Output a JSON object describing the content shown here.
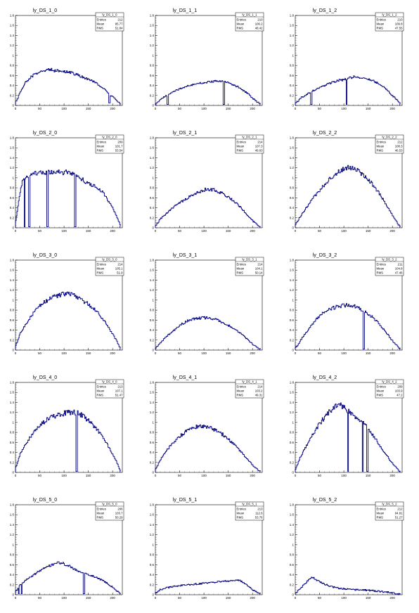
{
  "chart_data": [
    {
      "type": "line",
      "title": "ly_DS_1_0",
      "xlim": [
        0,
        220
      ],
      "ylim": [
        0,
        1.8
      ],
      "stats": {
        "name": "ly_DS_1_0",
        "entries_label": "Entries",
        "entries": "212",
        "mean_label": "Mean",
        "mean": "95.77",
        "rms_label": "RMS",
        "rms": "51.84"
      },
      "x": [
        0,
        5,
        10,
        20,
        30,
        40,
        50,
        60,
        70,
        80,
        90,
        100,
        110,
        120,
        130,
        140,
        150,
        160,
        170,
        180,
        185,
        190,
        200,
        210,
        215
      ],
      "y": [
        0.06,
        0.15,
        0.28,
        0.45,
        0.55,
        0.63,
        0.68,
        0.7,
        0.72,
        0.7,
        0.69,
        0.68,
        0.66,
        0.64,
        0.6,
        0.56,
        0.52,
        0.48,
        0.42,
        0.36,
        0.3,
        0.25,
        0.17,
        0.09,
        0.04
      ],
      "spikes": [
        {
          "x": 193,
          "y": 0.05
        }
      ]
    },
    {
      "type": "line",
      "title": "ly_DS_1_1",
      "xlim": [
        0,
        220
      ],
      "ylim": [
        0,
        1.8
      ],
      "stats": {
        "name": "ly_DS_1_1",
        "entries_label": "Entries",
        "entries": "210",
        "mean_label": "Mean",
        "mean": "106.2",
        "rms_label": "RMS",
        "rms": "48.42"
      },
      "x": [
        0,
        5,
        10,
        20,
        30,
        40,
        50,
        60,
        70,
        80,
        90,
        100,
        110,
        120,
        130,
        140,
        150,
        160,
        170,
        180,
        190,
        200,
        210,
        215
      ],
      "y": [
        0.03,
        0.07,
        0.12,
        0.18,
        0.24,
        0.29,
        0.33,
        0.37,
        0.4,
        0.42,
        0.44,
        0.46,
        0.47,
        0.48,
        0.49,
        0.48,
        0.45,
        0.42,
        0.37,
        0.31,
        0.24,
        0.15,
        0.07,
        0.03
      ],
      "spikes": [
        {
          "x": 25,
          "y": 0.02
        },
        {
          "x": 140,
          "y": 0.02
        }
      ]
    },
    {
      "type": "line",
      "title": "ly_DS_1_2",
      "xlim": [
        0,
        220
      ],
      "ylim": [
        0,
        1.8
      ],
      "stats": {
        "name": "ly_DS_1_2",
        "entries_label": "Entries",
        "entries": "210",
        "mean_label": "Mean",
        "mean": "109.8",
        "rms_label": "RMS",
        "rms": "47.55"
      },
      "x": [
        0,
        5,
        10,
        20,
        30,
        40,
        50,
        60,
        70,
        80,
        90,
        100,
        110,
        120,
        130,
        140,
        150,
        160,
        170,
        180,
        190,
        200,
        210,
        215
      ],
      "y": [
        0.04,
        0.08,
        0.14,
        0.2,
        0.26,
        0.31,
        0.36,
        0.4,
        0.44,
        0.47,
        0.5,
        0.52,
        0.55,
        0.57,
        0.56,
        0.54,
        0.52,
        0.49,
        0.45,
        0.39,
        0.3,
        0.2,
        0.1,
        0.04
      ],
      "spikes": [
        {
          "x": 32,
          "y": 0.02
        },
        {
          "x": 105,
          "y": 0.02
        }
      ]
    },
    {
      "type": "line",
      "title": "ly_DS_2_0",
      "xlim": [
        0,
        220
      ],
      "ylim": [
        0,
        1.8
      ],
      "stats": {
        "name": "ly_DS_2_0",
        "entries_label": "Entries",
        "entries": "209",
        "mean_label": "Mean",
        "mean": "101.7",
        "rms_label": "RMS",
        "rms": "53.54"
      },
      "x": [
        0,
        5,
        10,
        15,
        20,
        30,
        40,
        50,
        60,
        70,
        80,
        90,
        100,
        110,
        120,
        130,
        140,
        150,
        160,
        170,
        180,
        190,
        200,
        210,
        215
      ],
      "y": [
        0.1,
        0.4,
        0.75,
        0.95,
        1.0,
        1.05,
        1.08,
        1.1,
        1.12,
        1.1,
        1.12,
        1.13,
        1.1,
        1.12,
        1.08,
        1.0,
        0.95,
        0.88,
        0.85,
        0.8,
        0.72,
        0.55,
        0.4,
        0.2,
        0.08
      ],
      "spikes": [
        {
          "x": 18,
          "y": 0.02
        },
        {
          "x": 28,
          "y": 0.02
        },
        {
          "x": 65,
          "y": 0.02
        },
        {
          "x": 122,
          "y": 0.02
        }
      ]
    },
    {
      "type": "line",
      "title": "ly_DS_2_1",
      "xlim": [
        0,
        220
      ],
      "ylim": [
        0,
        1.8
      ],
      "stats": {
        "name": "ly_DS_2_1",
        "entries_label": "Entries",
        "entries": "214",
        "mean_label": "Mean",
        "mean": "107.3",
        "rms_label": "RMS",
        "rms": "49.63"
      },
      "x": [
        0,
        5,
        10,
        20,
        30,
        40,
        50,
        60,
        70,
        80,
        90,
        100,
        110,
        120,
        130,
        140,
        150,
        160,
        170,
        180,
        190,
        200,
        210,
        215
      ],
      "y": [
        0.04,
        0.1,
        0.17,
        0.26,
        0.35,
        0.43,
        0.5,
        0.56,
        0.62,
        0.67,
        0.72,
        0.76,
        0.77,
        0.76,
        0.72,
        0.68,
        0.62,
        0.55,
        0.46,
        0.36,
        0.25,
        0.14,
        0.06,
        0.02
      ],
      "spikes": []
    },
    {
      "type": "line",
      "title": "ly_DS_2_2",
      "xlim": [
        0,
        220
      ],
      "ylim": [
        0,
        1.8
      ],
      "stats": {
        "name": "ly_DS_2_2",
        "entries_label": "Entries",
        "entries": "212",
        "mean_label": "Mean",
        "mean": "108.3",
        "rms_label": "RMS",
        "rms": "46.53"
      },
      "x": [
        0,
        5,
        10,
        20,
        30,
        40,
        50,
        60,
        70,
        80,
        90,
        100,
        110,
        120,
        130,
        140,
        150,
        160,
        170,
        180,
        190,
        200,
        210,
        215
      ],
      "y": [
        0.05,
        0.13,
        0.22,
        0.36,
        0.5,
        0.63,
        0.75,
        0.86,
        0.96,
        1.05,
        1.12,
        1.18,
        1.2,
        1.18,
        1.13,
        1.06,
        0.97,
        0.86,
        0.73,
        0.58,
        0.42,
        0.25,
        0.1,
        0.03
      ],
      "spikes": []
    },
    {
      "type": "line",
      "title": "ly_DS_3_0",
      "xlim": [
        0,
        220
      ],
      "ylim": [
        0,
        1.8
      ],
      "stats": {
        "name": "ly_DS_3_0",
        "entries_label": "Entries",
        "entries": "214",
        "mean_label": "Mean",
        "mean": "105.1",
        "rms_label": "RMS",
        "rms": "51.9"
      },
      "x": [
        0,
        5,
        10,
        20,
        30,
        40,
        50,
        60,
        70,
        80,
        90,
        100,
        110,
        120,
        130,
        140,
        150,
        160,
        170,
        180,
        190,
        200,
        210,
        215
      ],
      "y": [
        0.08,
        0.2,
        0.35,
        0.5,
        0.64,
        0.77,
        0.88,
        0.96,
        1.03,
        1.08,
        1.1,
        1.12,
        1.14,
        1.1,
        1.05,
        0.98,
        0.92,
        0.84,
        0.74,
        0.62,
        0.48,
        0.32,
        0.16,
        0.05
      ],
      "spikes": []
    },
    {
      "type": "line",
      "title": "ly_DS_3_1",
      "xlim": [
        0,
        220
      ],
      "ylim": [
        0,
        1.8
      ],
      "stats": {
        "name": "ly_DS_3_1",
        "entries_label": "Entries",
        "entries": "214",
        "mean_label": "Mean",
        "mean": "104.1",
        "rms_label": "RMS",
        "rms": "50.14"
      },
      "x": [
        0,
        5,
        10,
        20,
        30,
        40,
        50,
        60,
        70,
        80,
        90,
        100,
        110,
        120,
        130,
        140,
        150,
        160,
        170,
        180,
        190,
        200,
        210,
        215
      ],
      "y": [
        0.03,
        0.08,
        0.15,
        0.24,
        0.33,
        0.41,
        0.49,
        0.55,
        0.6,
        0.63,
        0.64,
        0.65,
        0.64,
        0.62,
        0.59,
        0.55,
        0.5,
        0.44,
        0.37,
        0.3,
        0.21,
        0.12,
        0.05,
        0.02
      ],
      "spikes": []
    },
    {
      "type": "line",
      "title": "ly_DS_3_2",
      "xlim": [
        0,
        220
      ],
      "ylim": [
        0,
        1.8
      ],
      "stats": {
        "name": "ly_DS_3_2",
        "entries_label": "Entries",
        "entries": "211",
        "mean_label": "Mean",
        "mean": "104.8",
        "rms_label": "RMS",
        "rms": "47.46"
      },
      "x": [
        0,
        5,
        10,
        20,
        30,
        40,
        50,
        60,
        70,
        80,
        90,
        100,
        110,
        120,
        130,
        140,
        150,
        160,
        170,
        180,
        190,
        200,
        210,
        215
      ],
      "y": [
        0.04,
        0.1,
        0.18,
        0.32,
        0.45,
        0.58,
        0.68,
        0.76,
        0.81,
        0.85,
        0.88,
        0.89,
        0.9,
        0.88,
        0.84,
        0.8,
        0.73,
        0.65,
        0.55,
        0.44,
        0.32,
        0.19,
        0.08,
        0.03
      ],
      "spikes": [
        {
          "x": 140,
          "y": 0.02
        }
      ]
    },
    {
      "type": "line",
      "title": "ly_DS_4_0",
      "xlim": [
        0,
        220
      ],
      "ylim": [
        0,
        1.8
      ],
      "stats": {
        "name": "ly_DS_4_0",
        "entries_label": "Entries",
        "entries": "213",
        "mean_label": "Mean",
        "mean": "107.1",
        "rms_label": "RMS",
        "rms": "51.47"
      },
      "x": [
        0,
        5,
        10,
        20,
        30,
        40,
        50,
        60,
        70,
        80,
        90,
        100,
        110,
        120,
        130,
        140,
        150,
        160,
        170,
        180,
        190,
        200,
        210,
        215
      ],
      "y": [
        0.08,
        0.22,
        0.38,
        0.55,
        0.7,
        0.82,
        0.93,
        1.02,
        1.08,
        1.12,
        1.16,
        1.18,
        1.2,
        1.2,
        1.18,
        1.12,
        1.04,
        0.95,
        0.84,
        0.7,
        0.54,
        0.37,
        0.18,
        0.06
      ],
      "spikes": [
        {
          "x": 125,
          "y": 0.02
        }
      ]
    },
    {
      "type": "line",
      "title": "ly_DS_4_1",
      "xlim": [
        0,
        220
      ],
      "ylim": [
        0,
        1.8
      ],
      "stats": {
        "name": "ly_DS_4_1",
        "entries_label": "Entries",
        "entries": "214",
        "mean_label": "Mean",
        "mean": "103.2",
        "rms_label": "RMS",
        "rms": "49.31"
      },
      "x": [
        0,
        5,
        10,
        20,
        30,
        40,
        50,
        60,
        70,
        80,
        90,
        100,
        110,
        120,
        130,
        140,
        150,
        160,
        170,
        180,
        190,
        200,
        210,
        215
      ],
      "y": [
        0.05,
        0.14,
        0.25,
        0.39,
        0.52,
        0.63,
        0.72,
        0.8,
        0.86,
        0.9,
        0.92,
        0.92,
        0.9,
        0.86,
        0.81,
        0.75,
        0.67,
        0.58,
        0.48,
        0.37,
        0.26,
        0.15,
        0.06,
        0.02
      ],
      "spikes": []
    },
    {
      "type": "line",
      "title": "ly_DS_4_2",
      "xlim": [
        0,
        220
      ],
      "ylim": [
        0,
        1.8
      ],
      "stats": {
        "name": "ly_DS_4_2",
        "entries_label": "Entries",
        "entries": "209",
        "mean_label": "Mean",
        "mean": "103.9",
        "rms_label": "RMS",
        "rms": "47.2"
      },
      "x": [
        0,
        5,
        10,
        20,
        30,
        40,
        50,
        60,
        70,
        80,
        90,
        100,
        110,
        120,
        130,
        140,
        150,
        160,
        170,
        180,
        190,
        200,
        210,
        215
      ],
      "y": [
        0.06,
        0.16,
        0.3,
        0.48,
        0.65,
        0.82,
        0.97,
        1.1,
        1.22,
        1.3,
        1.35,
        1.3,
        1.22,
        1.15,
        1.08,
        1.0,
        0.88,
        0.75,
        0.6,
        0.45,
        0.32,
        0.18,
        0.07,
        0.02
      ],
      "spikes": [
        {
          "x": 108,
          "y": 0.02
        },
        {
          "x": 138,
          "y": 0.02
        },
        {
          "x": 148,
          "y": 0.02
        }
      ]
    },
    {
      "type": "line",
      "title": "ly_DS_5_0",
      "xlim": [
        0,
        220
      ],
      "ylim": [
        0,
        1.8
      ],
      "stats": {
        "name": "ly_DS_5_0",
        "entries_label": "Entries",
        "entries": "206",
        "mean_label": "Mean",
        "mean": "103.7",
        "rms_label": "RMS",
        "rms": "50.29"
      },
      "x": [
        0,
        5,
        10,
        20,
        30,
        40,
        50,
        60,
        70,
        80,
        90,
        100,
        110,
        120,
        130,
        140,
        150,
        160,
        170,
        180,
        190,
        200,
        210,
        215
      ],
      "y": [
        0.05,
        0.12,
        0.2,
        0.28,
        0.35,
        0.41,
        0.48,
        0.54,
        0.58,
        0.62,
        0.64,
        0.62,
        0.58,
        0.52,
        0.47,
        0.43,
        0.4,
        0.37,
        0.33,
        0.28,
        0.22,
        0.15,
        0.07,
        0.03
      ],
      "spikes": [
        {
          "x": 6,
          "y": 0.02
        },
        {
          "x": 12,
          "y": 0.02
        },
        {
          "x": 140,
          "y": 0.02
        }
      ]
    },
    {
      "type": "line",
      "title": "ly_DS_5_1",
      "xlim": [
        0,
        220
      ],
      "ylim": [
        0,
        1.8
      ],
      "stats": {
        "name": "ly_DS_5_1",
        "entries_label": "Entries",
        "entries": "213",
        "mean_label": "Mean",
        "mean": "112.6",
        "rms_label": "RMS",
        "rms": "53.76"
      },
      "x": [
        0,
        5,
        10,
        20,
        30,
        40,
        50,
        60,
        70,
        80,
        90,
        100,
        110,
        120,
        130,
        140,
        150,
        160,
        170,
        180,
        190,
        200,
        210,
        215
      ],
      "y": [
        0.03,
        0.07,
        0.1,
        0.13,
        0.15,
        0.17,
        0.18,
        0.19,
        0.2,
        0.21,
        0.22,
        0.23,
        0.24,
        0.25,
        0.26,
        0.27,
        0.27,
        0.28,
        0.3,
        0.25,
        0.18,
        0.1,
        0.05,
        0.02
      ],
      "spikes": []
    },
    {
      "type": "line",
      "title": "ly_DS_5_2",
      "xlim": [
        0,
        220
      ],
      "ylim": [
        0,
        1.8
      ],
      "stats": {
        "name": "ly_DS_5_2",
        "entries_label": "Entries",
        "entries": "212",
        "mean_label": "Mean",
        "mean": "94.81",
        "rms_label": "RMS",
        "rms": "51.27"
      },
      "x": [
        0,
        5,
        10,
        20,
        30,
        35,
        40,
        50,
        60,
        70,
        80,
        90,
        100,
        110,
        120,
        130,
        140,
        150,
        160,
        170,
        180,
        190,
        200,
        210,
        215
      ],
      "y": [
        0.03,
        0.07,
        0.12,
        0.22,
        0.32,
        0.36,
        0.32,
        0.26,
        0.21,
        0.18,
        0.15,
        0.13,
        0.12,
        0.11,
        0.1,
        0.1,
        0.09,
        0.09,
        0.08,
        0.07,
        0.06,
        0.05,
        0.04,
        0.02,
        0.01
      ],
      "spikes": []
    }
  ],
  "axes": {
    "x_ticks": [
      0,
      50,
      100,
      150,
      200
    ],
    "y_ticks": [
      0,
      0.2,
      0.4,
      0.6,
      0.8,
      1,
      1.2,
      1.4,
      1.6,
      1.8
    ],
    "line_color": "#000080",
    "frame_color": "#000000"
  }
}
